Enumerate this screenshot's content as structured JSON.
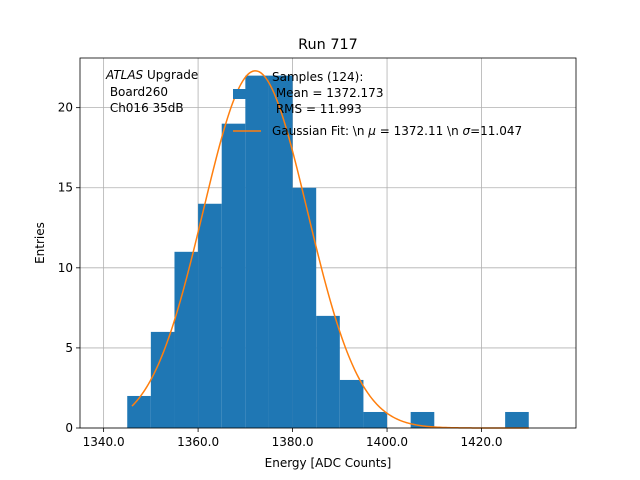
{
  "chart_data": {
    "type": "bar",
    "title": "Run 717",
    "xlabel": "Energy [ADC Counts]",
    "ylabel": "Entries",
    "xlim": [
      1335,
      1440
    ],
    "ylim": [
      0,
      23.1
    ],
    "grid": true,
    "x_ticks": [
      1340,
      1360,
      1380,
      1400,
      1420
    ],
    "x_tick_labels": [
      "1340.0",
      "1360.0",
      "1380.0",
      "1400.0",
      "1420.0"
    ],
    "y_ticks": [
      0,
      5,
      10,
      15,
      20
    ],
    "y_tick_labels": [
      "0",
      "5",
      "10",
      "15",
      "20"
    ],
    "bin_edges": [
      1345,
      1350,
      1355,
      1360,
      1365,
      1370,
      1375,
      1380,
      1385,
      1390,
      1395,
      1400,
      1405,
      1410,
      1415,
      1420,
      1425,
      1430
    ],
    "values": [
      2,
      6,
      11,
      14,
      19,
      22,
      22,
      15,
      7,
      3,
      1,
      0,
      1,
      0,
      0,
      0,
      1
    ],
    "bar_color": "#1f77b4",
    "fit": {
      "type": "gaussian",
      "mean": 1372.11,
      "sigma": 11.047,
      "peak": 22.3,
      "x_range": [
        1346,
        1430
      ],
      "color": "#ff7f0e"
    },
    "annotation": {
      "italic": "ATLAS",
      "rest": " Upgrade",
      "lines": [
        " Board260",
        " Ch016 35dB"
      ]
    },
    "legend": {
      "placement": "top-right",
      "hist_label_lines": [
        "Samples (124):",
        " Mean = 1372.173",
        " RMS = 11.993"
      ],
      "fit_label_prefix": "Gaussian Fit: \\n ",
      "fit_label_mu": "μ",
      "fit_label_mid": " = 1372.11 \\n ",
      "fit_label_sigma": "σ",
      "fit_label_suffix": "=11.047"
    }
  }
}
